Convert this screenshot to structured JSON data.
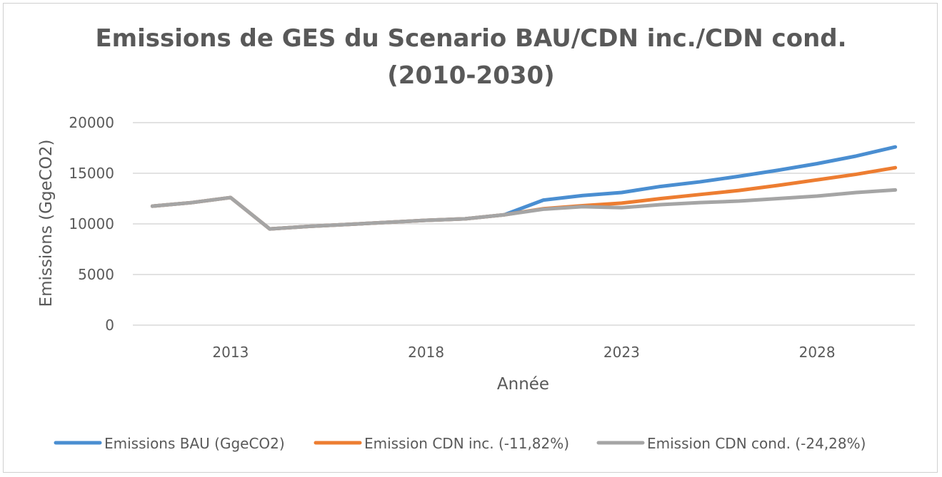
{
  "chart_data": {
    "type": "line",
    "title_line1": "Emissions de GES du Scenario BAU/CDN inc./CDN cond.",
    "title_line2": "(2010-2030)",
    "xlabel": "Année",
    "ylabel": "Emissions (GgeCO2)",
    "ylim": [
      0,
      20000
    ],
    "yticks": [
      "0",
      "5000",
      "10000",
      "15000",
      "20000"
    ],
    "xticks": [
      "2013",
      "2018",
      "2023",
      "2028"
    ],
    "xlim": [
      2010.5,
      2030.5
    ],
    "grid": true,
    "legend_position": "bottom",
    "x": [
      2011,
      2012,
      2013,
      2014,
      2015,
      2016,
      2017,
      2018,
      2019,
      2020,
      2021,
      2022,
      2023,
      2024,
      2025,
      2026,
      2027,
      2028,
      2029,
      2030
    ],
    "series": [
      {
        "name": "Emissions BAU  (GgeCO2)",
        "color": "#4a8ed1",
        "values": [
          11750,
          12100,
          12600,
          9500,
          9750,
          9950,
          10150,
          10350,
          10500,
          10900,
          12350,
          12800,
          13100,
          13700,
          14150,
          14700,
          15300,
          15950,
          16700,
          17600
        ]
      },
      {
        "name": "Emission CDN inc. (-11,82%)",
        "color": "#ed7d31",
        "values": [
          11750,
          12100,
          12600,
          9500,
          9750,
          9950,
          10150,
          10350,
          10500,
          10900,
          11500,
          11800,
          12050,
          12500,
          12900,
          13300,
          13800,
          14350,
          14900,
          15550
        ]
      },
      {
        "name": "Emission CDN cond. (-24,28%)",
        "color": "#a5a5a5",
        "values": [
          11750,
          12100,
          12600,
          9500,
          9750,
          9950,
          10150,
          10350,
          10500,
          10900,
          11450,
          11700,
          11600,
          11900,
          12100,
          12250,
          12500,
          12750,
          13100,
          13350
        ]
      }
    ]
  }
}
